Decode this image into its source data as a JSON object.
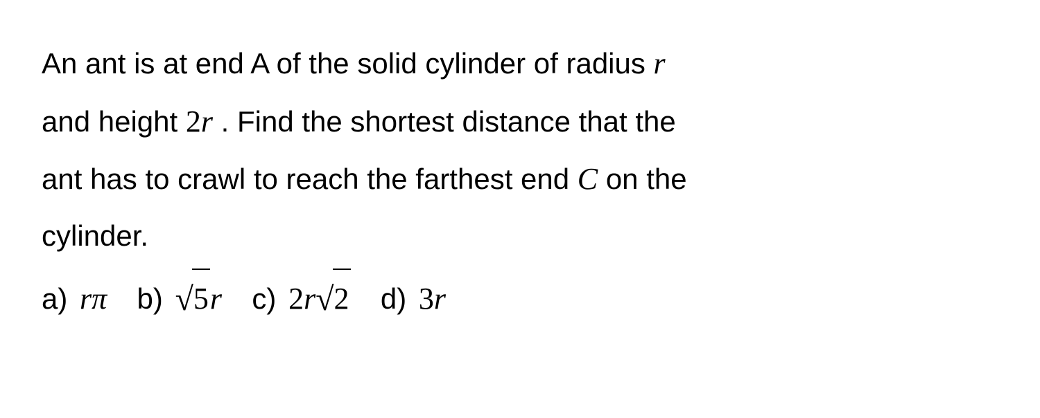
{
  "question": {
    "line1_part1": "An ant is at end A of the solid cylinder of radius ",
    "var_r": "r",
    "line2_part1": "and height ",
    "expr_2r_num": "2",
    "expr_2r_var": "r",
    "line2_part2": " . Find the shortest distance that the",
    "line3_part1": "ant has to crawl to reach the farthest end ",
    "var_C": "C",
    "line3_part2": "  on the",
    "line4": "cylinder."
  },
  "options": {
    "a": {
      "label": "a)",
      "var_r": "r",
      "pi": "π"
    },
    "b": {
      "label": "b)",
      "sqrt_content": "5",
      "var_r": "r"
    },
    "c": {
      "label": "c)",
      "num_2": "2",
      "var_r": "r",
      "sqrt_content": "2"
    },
    "d": {
      "label": "d)",
      "num_3": "3",
      "var_r": "r"
    }
  },
  "styling": {
    "background_color": "#ffffff",
    "text_color": "#000000",
    "body_font_family": "Arial, Helvetica, sans-serif",
    "math_font_family": "Times New Roman, Georgia, serif",
    "body_font_size": 42,
    "math_font_size": 44,
    "line_height": 1.9,
    "sqrt_border_width": 2.5,
    "container_width": 1500,
    "container_height": 604,
    "padding_vertical": 50,
    "padding_horizontal": 60
  }
}
